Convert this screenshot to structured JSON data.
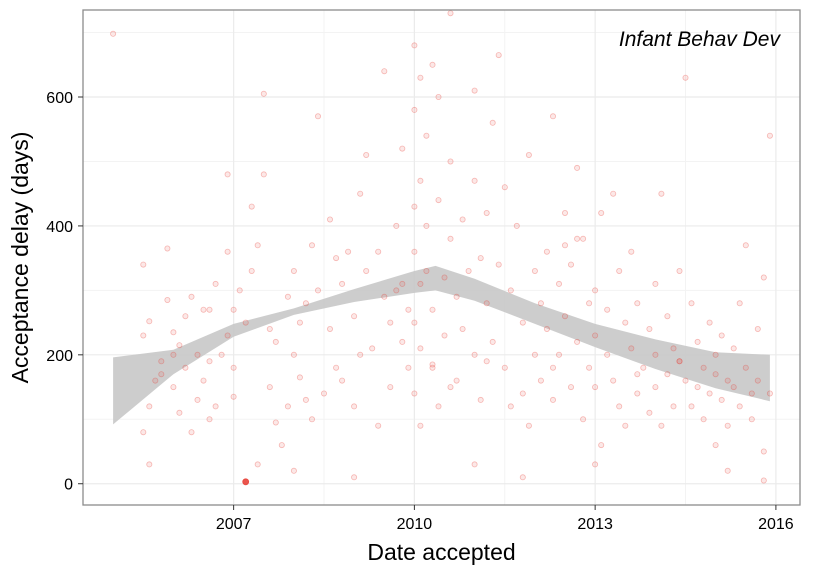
{
  "chart_data": {
    "type": "scatter",
    "title": "",
    "annotation": "Infant Behav Dev",
    "xlabel": "Date accepted",
    "ylabel": "Acceptance delay (days)",
    "xlim": [
      2004.5,
      2016.4
    ],
    "ylim": [
      -33,
      735
    ],
    "xticks": [
      2007,
      2010,
      2013,
      2016
    ],
    "yticks": [
      0,
      200,
      400,
      600
    ],
    "grid": true,
    "legend": "none",
    "colors": {
      "points": "#e8423a",
      "band": "#c8c8c8",
      "frame": "#8c8c8c",
      "grid": "#ebebeb"
    },
    "points": [
      [
        2005.0,
        698
      ],
      [
        2005.5,
        340
      ],
      [
        2005.6,
        252
      ],
      [
        2005.5,
        230
      ],
      [
        2005.6,
        120
      ],
      [
        2005.5,
        80
      ],
      [
        2005.7,
        160
      ],
      [
        2005.8,
        190
      ],
      [
        2005.8,
        170
      ],
      [
        2005.9,
        285
      ],
      [
        2005.9,
        365
      ],
      [
        2006.0,
        235
      ],
      [
        2006.0,
        200
      ],
      [
        2006.0,
        150
      ],
      [
        2006.1,
        110
      ],
      [
        2006.1,
        215
      ],
      [
        2006.2,
        180
      ],
      [
        2006.2,
        260
      ],
      [
        2006.3,
        290
      ],
      [
        2006.3,
        80
      ],
      [
        2006.4,
        130
      ],
      [
        2006.4,
        200
      ],
      [
        2006.5,
        160
      ],
      [
        2006.5,
        270
      ],
      [
        2005.6,
        30
      ],
      [
        2006.6,
        190
      ],
      [
        2006.7,
        310
      ],
      [
        2006.7,
        120
      ],
      [
        2006.8,
        200
      ],
      [
        2006.9,
        360
      ],
      [
        2006.9,
        230
      ],
      [
        2007.0,
        270
      ],
      [
        2007.0,
        180
      ],
      [
        2007.0,
        135
      ],
      [
        2007.1,
        300
      ],
      [
        2006.9,
        480
      ],
      [
        2007.2,
        250
      ],
      [
        2007.2,
        3
      ],
      [
        2007.3,
        430
      ],
      [
        2007.3,
        330
      ],
      [
        2007.4,
        370
      ],
      [
        2007.5,
        605
      ],
      [
        2007.5,
        480
      ],
      [
        2007.6,
        240
      ],
      [
        2007.6,
        150
      ],
      [
        2007.7,
        220
      ],
      [
        2007.7,
        95
      ],
      [
        2007.8,
        60
      ],
      [
        2007.9,
        120
      ],
      [
        2008.0,
        330
      ],
      [
        2008.0,
        200
      ],
      [
        2008.1,
        165
      ],
      [
        2008.1,
        250
      ],
      [
        2008.2,
        280
      ],
      [
        2008.2,
        130
      ],
      [
        2008.3,
        370
      ],
      [
        2008.3,
        100
      ],
      [
        2008.4,
        570
      ],
      [
        2008.4,
        300
      ],
      [
        2008.5,
        140
      ],
      [
        2008.6,
        240
      ],
      [
        2008.6,
        410
      ],
      [
        2008.7,
        180
      ],
      [
        2008.8,
        310
      ],
      [
        2008.8,
        160
      ],
      [
        2008.9,
        360
      ],
      [
        2009.0,
        260
      ],
      [
        2009.0,
        120
      ],
      [
        2009.1,
        200
      ],
      [
        2009.1,
        450
      ],
      [
        2009.2,
        510
      ],
      [
        2009.2,
        330
      ],
      [
        2009.3,
        210
      ],
      [
        2009.4,
        360
      ],
      [
        2009.4,
        90
      ],
      [
        2009.5,
        640
      ],
      [
        2009.5,
        290
      ],
      [
        2009.6,
        250
      ],
      [
        2009.6,
        150
      ],
      [
        2009.7,
        400
      ],
      [
        2009.7,
        300
      ],
      [
        2009.8,
        220
      ],
      [
        2009.8,
        520
      ],
      [
        2009.9,
        270
      ],
      [
        2009.9,
        180
      ],
      [
        2010.0,
        680
      ],
      [
        2010.0,
        580
      ],
      [
        2010.0,
        430
      ],
      [
        2010.0,
        360
      ],
      [
        2010.0,
        250
      ],
      [
        2010.0,
        140
      ],
      [
        2010.1,
        630
      ],
      [
        2010.1,
        470
      ],
      [
        2010.1,
        310
      ],
      [
        2010.1,
        210
      ],
      [
        2010.1,
        90
      ],
      [
        2010.2,
        540
      ],
      [
        2010.2,
        400
      ],
      [
        2010.2,
        330
      ],
      [
        2010.3,
        650
      ],
      [
        2010.3,
        270
      ],
      [
        2010.3,
        180
      ],
      [
        2010.4,
        600
      ],
      [
        2010.4,
        440
      ],
      [
        2010.4,
        120
      ],
      [
        2010.5,
        320
      ],
      [
        2010.5,
        230
      ],
      [
        2010.6,
        730
      ],
      [
        2010.6,
        500
      ],
      [
        2010.6,
        380
      ],
      [
        2010.7,
        290
      ],
      [
        2010.7,
        160
      ],
      [
        2010.8,
        410
      ],
      [
        2010.8,
        240
      ],
      [
        2010.9,
        330
      ],
      [
        2011.0,
        610
      ],
      [
        2011.0,
        470
      ],
      [
        2011.0,
        200
      ],
      [
        2011.1,
        350
      ],
      [
        2011.1,
        130
      ],
      [
        2011.2,
        420
      ],
      [
        2011.2,
        280
      ],
      [
        2011.3,
        560
      ],
      [
        2011.3,
        220
      ],
      [
        2011.4,
        665
      ],
      [
        2011.4,
        340
      ],
      [
        2011.5,
        180
      ],
      [
        2011.5,
        460
      ],
      [
        2011.6,
        300
      ],
      [
        2011.6,
        120
      ],
      [
        2011.7,
        400
      ],
      [
        2011.8,
        250
      ],
      [
        2011.8,
        140
      ],
      [
        2011.9,
        510
      ],
      [
        2011.9,
        90
      ],
      [
        2012.0,
        330
      ],
      [
        2012.0,
        200
      ],
      [
        2012.1,
        280
      ],
      [
        2012.1,
        160
      ],
      [
        2012.2,
        360
      ],
      [
        2012.2,
        240
      ],
      [
        2012.3,
        570
      ],
      [
        2012.3,
        130
      ],
      [
        2012.4,
        310
      ],
      [
        2012.4,
        200
      ],
      [
        2012.5,
        420
      ],
      [
        2012.5,
        260
      ],
      [
        2012.6,
        150
      ],
      [
        2012.6,
        340
      ],
      [
        2012.7,
        490
      ],
      [
        2012.7,
        220
      ],
      [
        2012.8,
        380
      ],
      [
        2012.8,
        100
      ],
      [
        2012.9,
        280
      ],
      [
        2012.9,
        180
      ],
      [
        2013.0,
        300
      ],
      [
        2013.0,
        230
      ],
      [
        2013.0,
        150
      ],
      [
        2013.1,
        420
      ],
      [
        2013.1,
        60
      ],
      [
        2013.2,
        270
      ],
      [
        2013.2,
        200
      ],
      [
        2013.3,
        450
      ],
      [
        2013.3,
        160
      ],
      [
        2013.4,
        330
      ],
      [
        2013.4,
        120
      ],
      [
        2013.5,
        250
      ],
      [
        2013.5,
        90
      ],
      [
        2013.6,
        210
      ],
      [
        2013.6,
        360
      ],
      [
        2013.7,
        140
      ],
      [
        2013.7,
        280
      ],
      [
        2013.8,
        180
      ],
      [
        2013.9,
        240
      ],
      [
        2013.9,
        110
      ],
      [
        2014.0,
        310
      ],
      [
        2014.0,
        200
      ],
      [
        2014.0,
        150
      ],
      [
        2014.1,
        450
      ],
      [
        2014.1,
        90
      ],
      [
        2014.2,
        260
      ],
      [
        2014.2,
        170
      ],
      [
        2014.3,
        120
      ],
      [
        2014.3,
        210
      ],
      [
        2014.4,
        330
      ],
      [
        2014.4,
        190
      ],
      [
        2014.5,
        160
      ],
      [
        2014.5,
        630
      ],
      [
        2014.6,
        280
      ],
      [
        2014.6,
        120
      ],
      [
        2014.7,
        220
      ],
      [
        2014.7,
        150
      ],
      [
        2014.8,
        180
      ],
      [
        2014.8,
        100
      ],
      [
        2014.9,
        250
      ],
      [
        2014.9,
        140
      ],
      [
        2015.0,
        200
      ],
      [
        2015.0,
        170
      ],
      [
        2015.0,
        60
      ],
      [
        2015.1,
        230
      ],
      [
        2015.1,
        130
      ],
      [
        2015.2,
        160
      ],
      [
        2015.2,
        90
      ],
      [
        2015.3,
        210
      ],
      [
        2015.3,
        150
      ],
      [
        2015.4,
        280
      ],
      [
        2015.4,
        120
      ],
      [
        2015.5,
        370
      ],
      [
        2015.5,
        180
      ],
      [
        2015.6,
        140
      ],
      [
        2015.6,
        100
      ],
      [
        2015.7,
        240
      ],
      [
        2015.7,
        160
      ],
      [
        2015.8,
        320
      ],
      [
        2015.8,
        50
      ],
      [
        2015.9,
        540
      ],
      [
        2015.9,
        140
      ],
      [
        2006.6,
        100
      ],
      [
        2007.4,
        30
      ],
      [
        2008.0,
        20
      ],
      [
        2009.0,
        10
      ],
      [
        2011.0,
        30
      ],
      [
        2011.8,
        10
      ],
      [
        2013.0,
        30
      ],
      [
        2015.2,
        20
      ],
      [
        2015.8,
        5
      ],
      [
        2010.3,
        185
      ],
      [
        2010.6,
        150
      ],
      [
        2011.2,
        190
      ],
      [
        2012.3,
        180
      ],
      [
        2013.7,
        170
      ],
      [
        2014.4,
        190
      ],
      [
        2012.5,
        370
      ],
      [
        2012.7,
        380
      ],
      [
        2009.8,
        310
      ],
      [
        2008.7,
        350
      ],
      [
        2007.9,
        290
      ],
      [
        2006.6,
        270
      ]
    ],
    "smooth": {
      "x": [
        2005.0,
        2006.0,
        2007.0,
        2008.0,
        2009.0,
        2010.0,
        2010.35,
        2011.0,
        2012.0,
        2013.0,
        2014.0,
        2015.0,
        2015.9
      ],
      "lower": [
        92,
        170,
        228,
        262,
        282,
        296,
        300,
        284,
        248,
        212,
        178,
        148,
        128
      ],
      "upper": [
        196,
        208,
        248,
        272,
        302,
        330,
        338,
        318,
        280,
        248,
        224,
        204,
        200
      ]
    }
  }
}
